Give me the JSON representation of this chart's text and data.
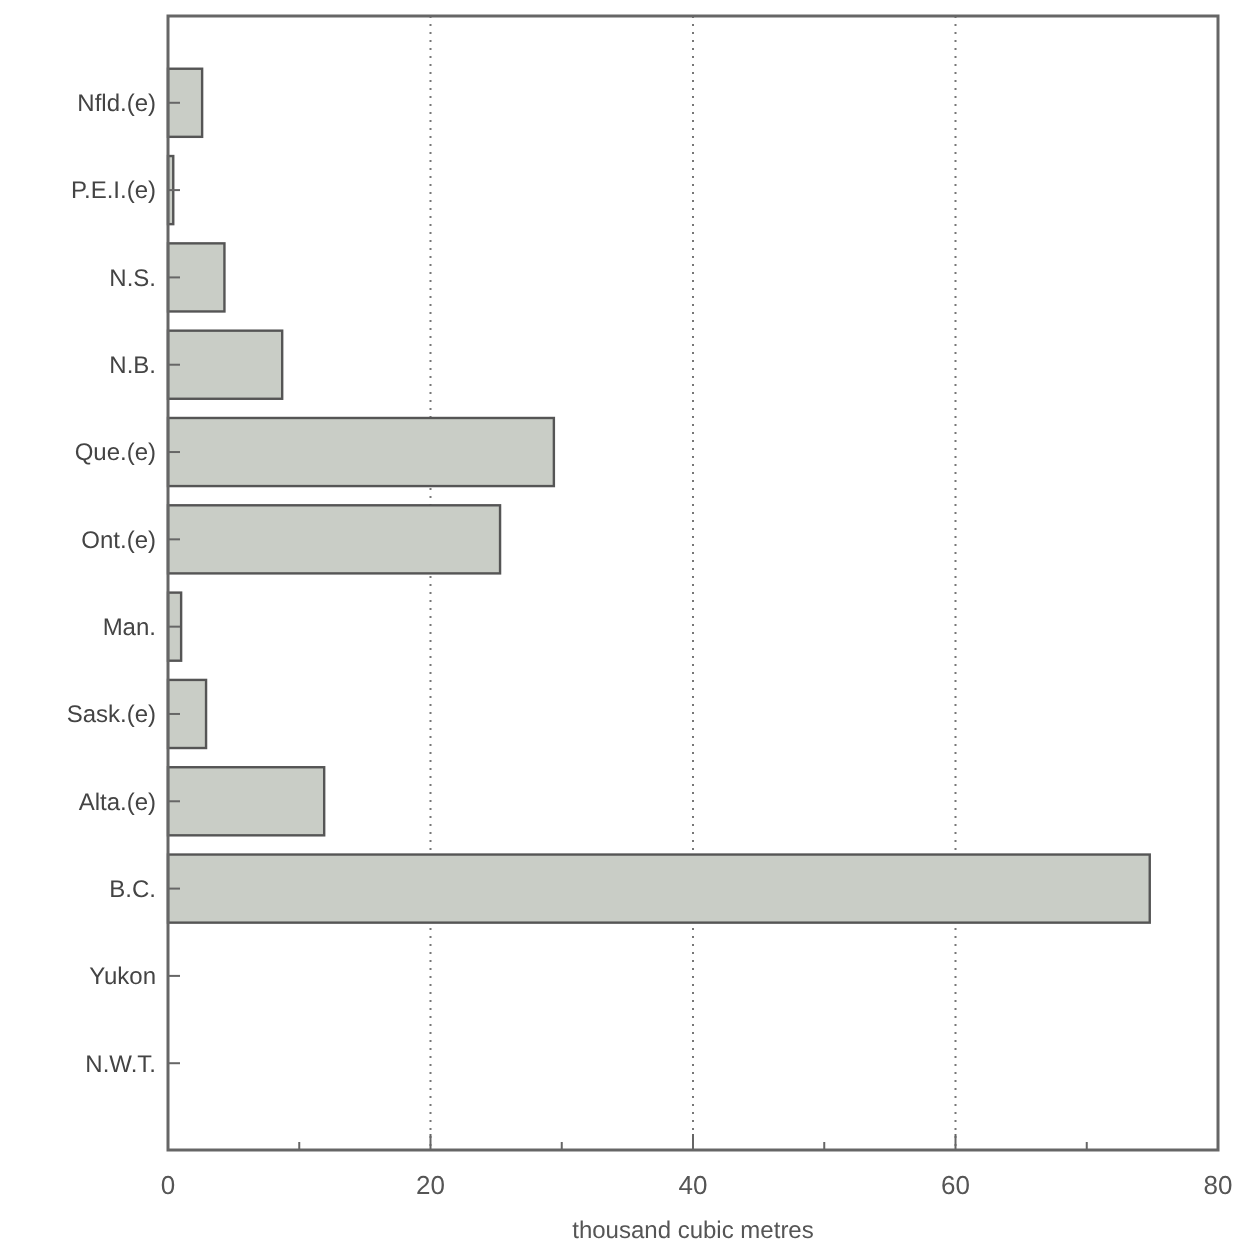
{
  "chart_data": {
    "type": "bar",
    "orientation": "horizontal",
    "xlabel": "thousand cubic metres",
    "categories": [
      "Nfld.(e)",
      "P.E.I.(e)",
      "N.S.",
      "N.B.",
      "Que.(e)",
      "Ont.(e)",
      "Man.",
      "Sask.(e)",
      "Alta.(e)",
      "B.C.",
      "Yukon",
      "N.W.T."
    ],
    "values": [
      2.6,
      0.4,
      4.3,
      8.7,
      29.4,
      25.3,
      1.0,
      2.9,
      11.9,
      74.8,
      0,
      0
    ],
    "color": "#c9cdc6",
    "xlim": [
      0,
      80
    ],
    "xticks": [
      0,
      {
        "value": 10,
        "label": null
      },
      20,
      {
        "value": 30,
        "label": null
      },
      40,
      {
        "value": 50,
        "label": null
      },
      60,
      {
        "value": 70,
        "label": null
      },
      80
    ],
    "grid": "x"
  }
}
